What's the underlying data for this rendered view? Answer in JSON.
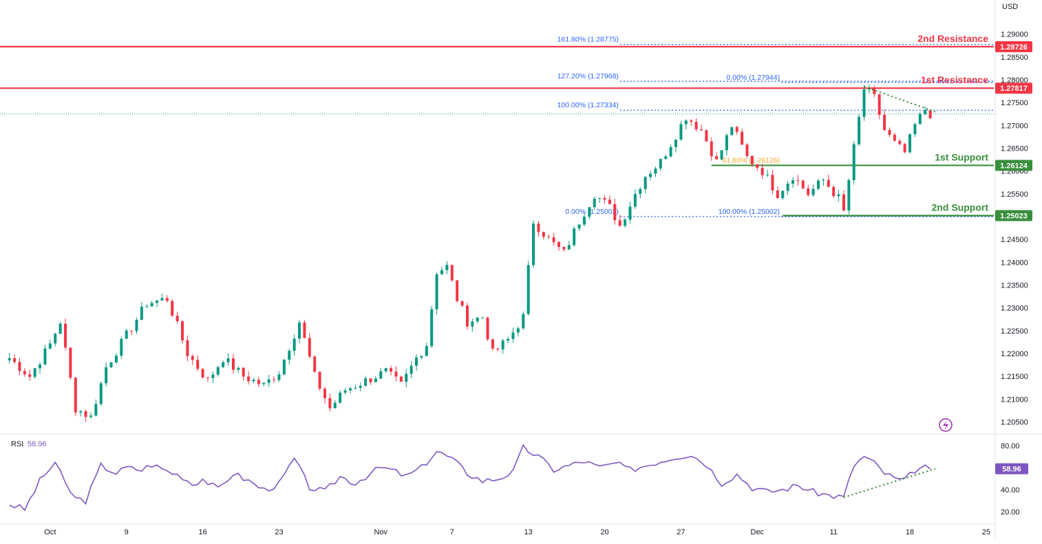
{
  "chart_data": {
    "type": "candlestick",
    "currency": "USD",
    "price_axis": {
      "ylim": [
        1.2025,
        1.2975
      ],
      "ticks": [
        "1.20500",
        "1.21000",
        "1.21500",
        "1.22000",
        "1.22500",
        "1.23000",
        "1.23500",
        "1.24000",
        "1.24500",
        "1.25000",
        "1.25500",
        "1.26000",
        "1.26500",
        "1.27000",
        "1.27500",
        "1.28000",
        "1.28500",
        "1.29000"
      ]
    },
    "time_axis": {
      "labels": [
        {
          "label": "Oct",
          "bar": 8
        },
        {
          "label": "9",
          "bar": 23
        },
        {
          "label": "16",
          "bar": 38
        },
        {
          "label": "23",
          "bar": 53
        },
        {
          "label": "Nov",
          "bar": 73
        },
        {
          "label": "7",
          "bar": 87
        },
        {
          "label": "13",
          "bar": 102
        },
        {
          "label": "20",
          "bar": 117
        },
        {
          "label": "27",
          "bar": 132
        },
        {
          "label": "Dec",
          "bar": 147
        },
        {
          "label": "11",
          "bar": 162
        },
        {
          "label": "18",
          "bar": 177
        },
        {
          "label": "25",
          "bar": 192
        }
      ],
      "total_bars": 194
    },
    "candles": {
      "anchors": [
        [
          0,
          1.219
        ],
        [
          4,
          1.215
        ],
        [
          8,
          1.222
        ],
        [
          10,
          1.227
        ],
        [
          13,
          1.208
        ],
        [
          16,
          1.206
        ],
        [
          19,
          1.217
        ],
        [
          23,
          1.224
        ],
        [
          27,
          1.231
        ],
        [
          31,
          1.232
        ],
        [
          35,
          1.22
        ],
        [
          39,
          1.214
        ],
        [
          42,
          1.219
        ],
        [
          46,
          1.215
        ],
        [
          50,
          1.213
        ],
        [
          53,
          1.216
        ],
        [
          57,
          1.227
        ],
        [
          60,
          1.215
        ],
        [
          63,
          1.208
        ],
        [
          66,
          1.212
        ],
        [
          70,
          1.214
        ],
        [
          74,
          1.216
        ],
        [
          77,
          1.213
        ],
        [
          80,
          1.219
        ],
        [
          82,
          1.222
        ],
        [
          84,
          1.238
        ],
        [
          86,
          1.239
        ],
        [
          88,
          1.232
        ],
        [
          90,
          1.227
        ],
        [
          93,
          1.228
        ],
        [
          95,
          1.22
        ],
        [
          98,
          1.223
        ],
        [
          101,
          1.228
        ],
        [
          103,
          1.249
        ],
        [
          106,
          1.245
        ],
        [
          109,
          1.242
        ],
        [
          112,
          1.249
        ],
        [
          115,
          1.255
        ],
        [
          118,
          1.252
        ],
        [
          120,
          1.248
        ],
        [
          123,
          1.255
        ],
        [
          125,
          1.259
        ],
        [
          128,
          1.262
        ],
        [
          131,
          1.268
        ],
        [
          133,
          1.272
        ],
        [
          136,
          1.269
        ],
        [
          139,
          1.262
        ],
        [
          142,
          1.27
        ],
        [
          145,
          1.263
        ],
        [
          148,
          1.26
        ],
        [
          151,
          1.255
        ],
        [
          154,
          1.259
        ],
        [
          157,
          1.255
        ],
        [
          160,
          1.258
        ],
        [
          163,
          1.254
        ],
        [
          164,
          1.251
        ],
        [
          166,
          1.265
        ],
        [
          168,
          1.278
        ],
        [
          170,
          1.276
        ],
        [
          172,
          1.269
        ],
        [
          174,
          1.266
        ],
        [
          176,
          1.264
        ],
        [
          178,
          1.27
        ],
        [
          180,
          1.2735
        ],
        [
          181,
          1.2725
        ]
      ],
      "up_color": "#089981",
      "down_color": "#f23645"
    },
    "rsi": {
      "label": "RSI",
      "current_value": "58.96",
      "ylim": [
        10,
        90
      ],
      "ticks": [
        "80.00",
        "60.00",
        "40.00",
        "20.00"
      ],
      "line_color": "#7e57c2",
      "anchors": [
        [
          0,
          27
        ],
        [
          3,
          22
        ],
        [
          6,
          48
        ],
        [
          9,
          65
        ],
        [
          11,
          45
        ],
        [
          13,
          32
        ],
        [
          15,
          30
        ],
        [
          18,
          62
        ],
        [
          21,
          55
        ],
        [
          23,
          60
        ],
        [
          26,
          58
        ],
        [
          28,
          63
        ],
        [
          31,
          57
        ],
        [
          34,
          52
        ],
        [
          36,
          45
        ],
        [
          38,
          50
        ],
        [
          41,
          40
        ],
        [
          44,
          55
        ],
        [
          47,
          48
        ],
        [
          50,
          40
        ],
        [
          53,
          45
        ],
        [
          56,
          68
        ],
        [
          59,
          42
        ],
        [
          62,
          38
        ],
        [
          65,
          52
        ],
        [
          68,
          46
        ],
        [
          71,
          55
        ],
        [
          73,
          60
        ],
        [
          75,
          58
        ],
        [
          78,
          52
        ],
        [
          81,
          60
        ],
        [
          84,
          75
        ],
        [
          87,
          68
        ],
        [
          90,
          55
        ],
        [
          93,
          48
        ],
        [
          96,
          50
        ],
        [
          99,
          56
        ],
        [
          101,
          78
        ],
        [
          104,
          70
        ],
        [
          107,
          58
        ],
        [
          110,
          62
        ],
        [
          113,
          66
        ],
        [
          116,
          60
        ],
        [
          119,
          64
        ],
        [
          122,
          58
        ],
        [
          125,
          62
        ],
        [
          128,
          66
        ],
        [
          131,
          70
        ],
        [
          134,
          72
        ],
        [
          137,
          63
        ],
        [
          140,
          46
        ],
        [
          143,
          54
        ],
        [
          146,
          42
        ],
        [
          149,
          38
        ],
        [
          152,
          40
        ],
        [
          155,
          44
        ],
        [
          158,
          38
        ],
        [
          161,
          35
        ],
        [
          164,
          33
        ],
        [
          166,
          62
        ],
        [
          168,
          70
        ],
        [
          170,
          64
        ],
        [
          172,
          55
        ],
        [
          174,
          50
        ],
        [
          176,
          48
        ],
        [
          178,
          58
        ],
        [
          180,
          60
        ],
        [
          181,
          58.96
        ]
      ],
      "trendline": {
        "from": [
          164,
          33
        ],
        "to": [
          182,
          59
        ]
      }
    },
    "levels": [
      {
        "id": "res2",
        "price": 1.28726,
        "label": "2nd Resistance",
        "tag": "1.28726",
        "color": "#f23645",
        "start_bar": 0
      },
      {
        "id": "res1",
        "price": 1.27817,
        "label": "1st Resistance",
        "tag": "1.27817",
        "color": "#f23645",
        "start_bar": 0
      },
      {
        "id": "sup1",
        "price": 1.26124,
        "label": "1st Support",
        "tag": "1.26124",
        "color": "#388e3c",
        "start_bar": 138
      },
      {
        "id": "sup2",
        "price": 1.25023,
        "label": "2nd Support",
        "tag": "1.25023",
        "color": "#388e3c",
        "start_bar": 152
      }
    ],
    "fib_levels": [
      {
        "label": "161.80% (1.28775)",
        "price": 1.28775,
        "start_bar": 118,
        "color": "#2962ff"
      },
      {
        "label": "127.20% (1.27968)",
        "price": 1.27968,
        "start_bar": 118,
        "color": "#2962ff"
      },
      {
        "label": "100.00% (1.27334)",
        "price": 1.27334,
        "start_bar": 118,
        "color": "#2962ff"
      },
      {
        "label": "0.00% (1.25002)",
        "price": 1.25002,
        "start_bar": 118,
        "color": "#2962ff"
      },
      {
        "label": "0.00% (1.27944)",
        "price": 1.27944,
        "start_bar": 149,
        "color": "#2962ff"
      },
      {
        "label": "61.80% (1.26126)",
        "price": 1.26126,
        "start_bar": 149,
        "color": "#f5a623"
      },
      {
        "label": "100.00% (1.25002)",
        "price": 1.25002,
        "start_bar": 149,
        "color": "#2962ff"
      }
    ],
    "current_price_line": {
      "price": 1.2725,
      "color": "#089981"
    },
    "price_trendline": {
      "from": [
        168,
        1.2785
      ],
      "to": [
        182,
        1.273
      ],
      "color": "#388e3c"
    }
  }
}
